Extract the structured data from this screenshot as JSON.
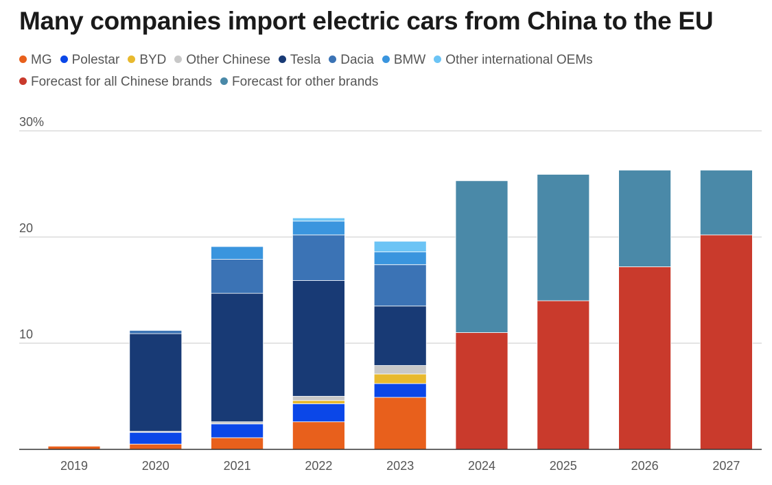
{
  "title": "Many companies import electric cars from China to the EU",
  "chart_data": {
    "type": "bar",
    "stacked": true,
    "categories": [
      "2019",
      "2020",
      "2021",
      "2022",
      "2023",
      "2024",
      "2025",
      "2026",
      "2027"
    ],
    "ylim": [
      0,
      30
    ],
    "yticks": [
      {
        "value": 10,
        "label": "10"
      },
      {
        "value": 20,
        "label": "20"
      },
      {
        "value": 30,
        "label": "30%"
      }
    ],
    "grid": true,
    "legend_position": "top",
    "series": [
      {
        "name": "MG",
        "color": "#e8601c",
        "values": [
          0.3,
          0.5,
          1.1,
          2.6,
          4.9,
          0,
          0,
          0,
          0
        ]
      },
      {
        "name": "Polestar",
        "color": "#0b47e8",
        "values": [
          0,
          1.1,
          1.3,
          1.7,
          1.3,
          0,
          0,
          0,
          0
        ]
      },
      {
        "name": "BYD",
        "color": "#e8b92e",
        "values": [
          0,
          0,
          0,
          0.3,
          0.9,
          0,
          0,
          0,
          0
        ]
      },
      {
        "name": "Other Chinese",
        "color": "#c8c8c8",
        "values": [
          0,
          0.1,
          0.2,
          0.4,
          0.8,
          0,
          0,
          0,
          0
        ]
      },
      {
        "name": "Tesla",
        "color": "#183a75",
        "values": [
          0,
          9.2,
          12.1,
          10.9,
          5.6,
          0,
          0,
          0,
          0
        ]
      },
      {
        "name": "Dacia",
        "color": "#3b73b5",
        "values": [
          0,
          0.3,
          3.2,
          4.3,
          3.9,
          0,
          0,
          0,
          0
        ]
      },
      {
        "name": "BMW",
        "color": "#3a95de",
        "values": [
          0,
          0,
          1.2,
          1.3,
          1.2,
          0,
          0,
          0,
          0
        ]
      },
      {
        "name": "Other international OEMs",
        "color": "#6cc4f5",
        "values": [
          0,
          0,
          0,
          0.3,
          1.0,
          0,
          0,
          0,
          0
        ]
      },
      {
        "name": "Forecast for all Chinese brands",
        "color": "#c93a2c",
        "values": [
          0,
          0,
          0,
          0,
          0,
          11.0,
          14.0,
          17.2,
          20.2
        ]
      },
      {
        "name": "Forecast for other brands",
        "color": "#4a89a8",
        "values": [
          0,
          0,
          0,
          0,
          0,
          14.3,
          11.9,
          9.1,
          6.1
        ]
      }
    ]
  }
}
